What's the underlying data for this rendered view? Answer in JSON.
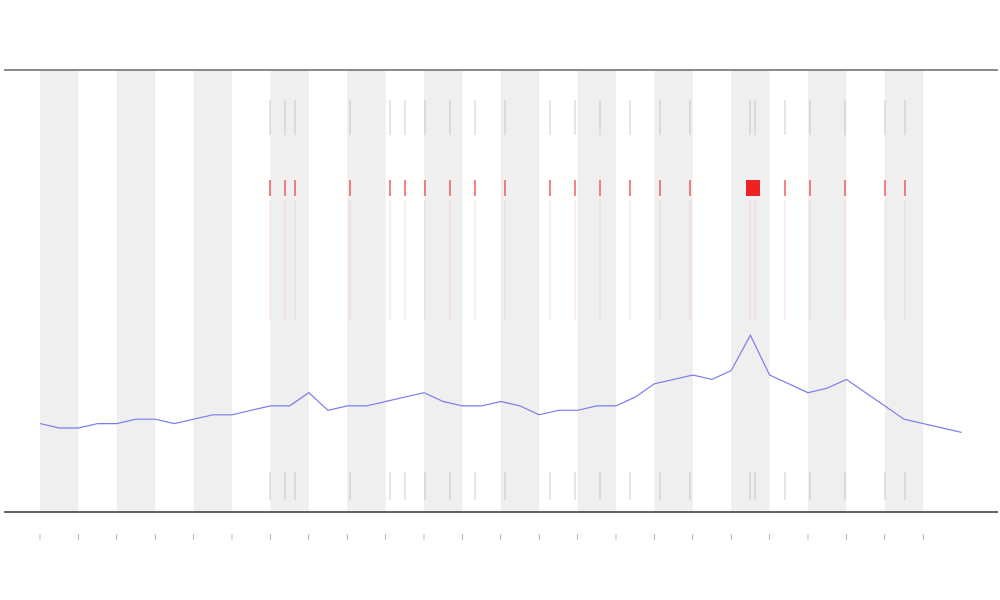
{
  "chart_data": {
    "type": "line",
    "x": [
      0,
      0.5,
      1,
      1.5,
      2,
      2.5,
      3,
      3.5,
      4,
      4.5,
      5,
      5.5,
      6,
      6.5,
      7,
      7.5,
      8,
      8.5,
      9,
      9.5,
      10,
      10.5,
      11,
      11.5,
      12,
      12.5,
      13,
      13.5,
      14,
      14.5,
      15,
      15.5,
      16,
      16.5,
      17,
      17.5,
      18,
      18.5,
      19,
      19.5,
      20,
      20.5,
      21,
      21.5,
      22,
      22.5,
      23,
      23.5,
      24
    ],
    "series": [
      {
        "color": "#7b7bf0",
        "values": [
          20,
          19,
          19,
          20,
          20,
          21,
          21,
          20,
          21,
          22,
          22,
          23,
          24,
          24,
          27,
          23,
          24,
          24,
          25,
          26,
          27,
          25,
          24,
          24,
          25,
          24,
          22,
          23,
          23,
          24,
          24,
          26,
          29,
          30,
          31,
          30,
          32,
          40,
          31,
          29,
          27,
          28,
          30,
          27,
          24,
          21,
          20,
          19,
          18
        ]
      }
    ],
    "xlim": [
      0,
      24.5
    ],
    "ylim": [
      0,
      100
    ],
    "xticks": [
      0,
      1,
      2,
      3,
      4,
      5,
      6,
      7,
      8,
      9,
      10,
      11,
      12,
      13,
      14,
      15,
      16,
      17,
      18,
      19,
      20,
      21,
      22,
      23
    ]
  }
}
